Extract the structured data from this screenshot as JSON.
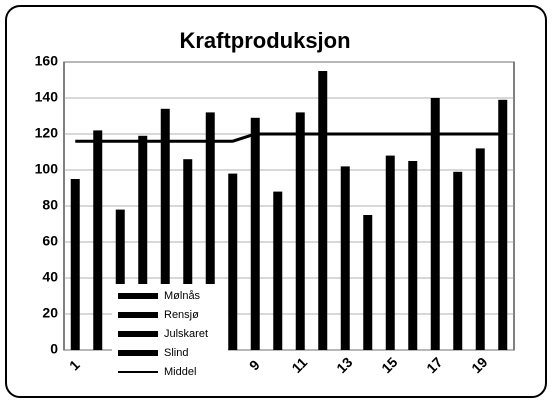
{
  "chart_data": {
    "type": "bar",
    "title": "Kraftproduksjon",
    "categories": [
      "1",
      null,
      null,
      null,
      null,
      null,
      null,
      null,
      "9",
      null,
      "11",
      null,
      "13",
      null,
      "15",
      null,
      "17",
      null,
      "19",
      null
    ],
    "series": [
      {
        "values": [
          95,
          122,
          78,
          119,
          134,
          106,
          132,
          98,
          129,
          88,
          132,
          155,
          102,
          75,
          108,
          105,
          140,
          99,
          112,
          139
        ],
        "color": "#000000"
      },
      {
        "name": "Middel",
        "type": "line",
        "values": [
          116,
          116,
          116,
          116,
          116,
          116,
          116,
          116,
          120,
          120,
          120,
          120,
          120,
          120,
          120,
          120,
          120,
          120,
          120,
          120
        ],
        "color": "#000000"
      }
    ],
    "legend": [
      "Mølnås",
      "Rensjø",
      "Julskaret",
      "Slind",
      "Middel"
    ],
    "ylim": [
      0,
      160
    ],
    "yticks": [
      0,
      20,
      40,
      60,
      80,
      100,
      120,
      140,
      160
    ],
    "grid": true
  }
}
